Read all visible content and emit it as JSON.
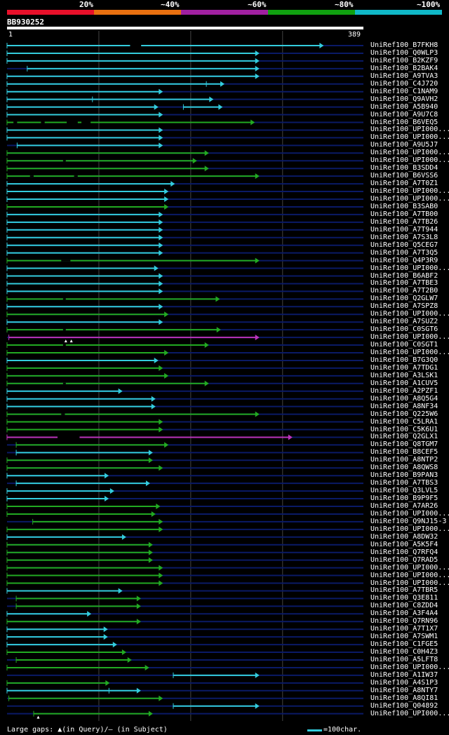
{
  "legend": {
    "labels": [
      "20%",
      "~40%",
      "~60%",
      "~80%",
      "~100%"
    ],
    "colors": [
      "#e8102a",
      "#e87010",
      "#a020a0",
      "#10a010",
      "#10b8c8"
    ]
  },
  "query": {
    "id": "BB930252",
    "start": "1",
    "end": "389",
    "length": 389
  },
  "footer": {
    "gaps_text": "Large gaps: ▲(in Query)/— (in Subject)",
    "scale_text": "=100char."
  },
  "colors": {
    "cyan": "#33ccdd",
    "green": "#22aa22",
    "magenta": "#bb33bb",
    "navy": "#0a1a66",
    "grid": "#444444"
  },
  "hits": [
    {
      "id": "UniRef100_B7FKH8",
      "start": 1,
      "end": 345,
      "color": "cyan",
      "gaps": [
        [
          135,
          147
        ]
      ]
    },
    {
      "id": "UniRef100_Q0WLP3",
      "start": 1,
      "end": 275,
      "color": "cyan"
    },
    {
      "id": "UniRef100_B2KZF9",
      "start": 1,
      "end": 275,
      "color": "cyan"
    },
    {
      "id": "UniRef100_B2BAK4",
      "start": 23,
      "end": 275,
      "color": "cyan"
    },
    {
      "id": "UniRef100_A9TVA3",
      "start": 1,
      "end": 275,
      "color": "cyan"
    },
    {
      "id": "UniRef100_C4J720",
      "start": 1,
      "end": 237,
      "color": "cyan",
      "tip": 218
    },
    {
      "id": "UniRef100_C1NAM9",
      "start": 1,
      "end": 170,
      "color": "cyan"
    },
    {
      "id": "UniRef100_Q9AVH2",
      "start": 1,
      "end": 225,
      "color": "cyan",
      "tip": 94
    },
    {
      "id": "UniRef100_A5B940",
      "start": 1,
      "end": 165,
      "color": "cyan",
      "sub": [
        [
          193,
          235
        ]
      ]
    },
    {
      "id": "UniRef100_A9U7C8",
      "start": 1,
      "end": 170,
      "color": "cyan"
    },
    {
      "id": "UniRef100_B6VEQ5",
      "start": 1,
      "end": 270,
      "color": "green",
      "gaps": [
        [
          8,
          12
        ],
        [
          38,
          42
        ],
        [
          66,
          78
        ],
        [
          82,
          92
        ]
      ]
    },
    {
      "id": "UniRef100_UPI000...",
      "start": 1,
      "end": 170,
      "color": "cyan"
    },
    {
      "id": "UniRef100_UPI000...",
      "start": 1,
      "end": 170,
      "color": "cyan"
    },
    {
      "id": "UniRef100_A9U5J7",
      "start": 12,
      "end": 170,
      "color": "cyan"
    },
    {
      "id": "UniRef100_UPI000...",
      "start": 1,
      "end": 220,
      "color": "green"
    },
    {
      "id": "UniRef100_UPI000...",
      "start": 1,
      "end": 207,
      "color": "green",
      "gaps": [
        [
          62,
          65
        ]
      ]
    },
    {
      "id": "UniRef100_B3SDD4",
      "start": 1,
      "end": 220,
      "color": "green"
    },
    {
      "id": "UniRef100_B6VSS6",
      "start": 1,
      "end": 275,
      "color": "green",
      "gaps": [
        [
          26,
          30
        ],
        [
          74,
          78
        ]
      ]
    },
    {
      "id": "UniRef100_A7T0Z1",
      "start": 1,
      "end": 183,
      "color": "cyan"
    },
    {
      "id": "UniRef100_UPI000...",
      "start": 1,
      "end": 176,
      "color": "cyan"
    },
    {
      "id": "UniRef100_UPI000...",
      "start": 1,
      "end": 176,
      "color": "cyan"
    },
    {
      "id": "UniRef100_B3SAB0",
      "start": 1,
      "end": 176,
      "color": "green"
    },
    {
      "id": "UniRef100_A7TB00",
      "start": 1,
      "end": 170,
      "color": "cyan"
    },
    {
      "id": "UniRef100_A7TB26",
      "start": 1,
      "end": 170,
      "color": "cyan"
    },
    {
      "id": "UniRef100_A7T944",
      "start": 1,
      "end": 170,
      "color": "cyan"
    },
    {
      "id": "UniRef100_A7S3L8",
      "start": 1,
      "end": 170,
      "color": "cyan"
    },
    {
      "id": "UniRef100_Q5CEG7",
      "start": 1,
      "end": 170,
      "color": "cyan"
    },
    {
      "id": "UniRef100_A7T3Q5",
      "start": 1,
      "end": 170,
      "color": "cyan"
    },
    {
      "id": "UniRef100_Q4P3R9",
      "start": 1,
      "end": 275,
      "color": "green",
      "gaps": [
        [
          60,
          70
        ]
      ]
    },
    {
      "id": "UniRef100_UPI000...",
      "start": 1,
      "end": 165,
      "color": "cyan"
    },
    {
      "id": "UniRef100_B6ABF2",
      "start": 1,
      "end": 170,
      "color": "cyan"
    },
    {
      "id": "UniRef100_A7TBE3",
      "start": 1,
      "end": 170,
      "color": "cyan"
    },
    {
      "id": "UniRef100_A7T2B0",
      "start": 1,
      "end": 170,
      "color": "cyan"
    },
    {
      "id": "UniRef100_Q2GLW7",
      "start": 1,
      "end": 232,
      "color": "green",
      "gaps": [
        [
          62,
          65
        ]
      ]
    },
    {
      "id": "UniRef100_A7SPZ8",
      "start": 1,
      "end": 170,
      "color": "cyan"
    },
    {
      "id": "UniRef100_UPI000...",
      "start": 1,
      "end": 176,
      "color": "green"
    },
    {
      "id": "UniRef100_A7SUZ2",
      "start": 1,
      "end": 170,
      "color": "cyan"
    },
    {
      "id": "UniRef100_C0SGT6",
      "start": 1,
      "end": 233,
      "color": "green",
      "gaps": [
        [
          62,
          65
        ]
      ]
    },
    {
      "id": "UniRef100_UPI000...",
      "start": 3,
      "end": 275,
      "color": "magenta",
      "qgaps": [
        65,
        71
      ]
    },
    {
      "id": "UniRef100_C0SGT1",
      "start": 1,
      "end": 220,
      "color": "green",
      "gaps": [
        [
          62,
          65
        ]
      ]
    },
    {
      "id": "UniRef100_UPI000...",
      "start": 1,
      "end": 176,
      "color": "green"
    },
    {
      "id": "UniRef100_B7G3Q0",
      "start": 1,
      "end": 165,
      "color": "cyan"
    },
    {
      "id": "UniRef100_A7TDG1",
      "start": 1,
      "end": 170,
      "color": "green"
    },
    {
      "id": "UniRef100_A3LSK1",
      "start": 1,
      "end": 176,
      "color": "green"
    },
    {
      "id": "UniRef100_A1CUV5",
      "start": 1,
      "end": 220,
      "color": "green",
      "gaps": [
        [
          62,
          65
        ]
      ]
    },
    {
      "id": "UniRef100_A2PZF1",
      "start": 1,
      "end": 126,
      "color": "cyan"
    },
    {
      "id": "UniRef100_A8Q5G4",
      "start": 1,
      "end": 162,
      "color": "cyan"
    },
    {
      "id": "UniRef100_A8NF34",
      "start": 1,
      "end": 162,
      "color": "cyan"
    },
    {
      "id": "UniRef100_Q225W6",
      "start": 1,
      "end": 275,
      "color": "green",
      "gaps": [
        [
          60,
          64
        ]
      ]
    },
    {
      "id": "UniRef100_C5LRA1",
      "start": 1,
      "end": 170,
      "color": "green"
    },
    {
      "id": "UniRef100_C5K6U1",
      "start": 1,
      "end": 170,
      "color": "green"
    },
    {
      "id": "UniRef100_Q2GLX1",
      "start": 1,
      "end": 311,
      "color": "magenta",
      "gaps": [
        [
          56,
          80
        ]
      ]
    },
    {
      "id": "UniRef100_Q8TGM7",
      "start": 11,
      "end": 176,
      "color": "green"
    },
    {
      "id": "UniRef100_B8CEF5",
      "start": 11,
      "end": 159,
      "color": "cyan"
    },
    {
      "id": "UniRef100_A8NTP2",
      "start": 1,
      "end": 159,
      "color": "green"
    },
    {
      "id": "UniRef100_A8QWS8",
      "start": 1,
      "end": 170,
      "color": "green"
    },
    {
      "id": "UniRef100_B9PAN3",
      "start": 1,
      "end": 111,
      "color": "cyan"
    },
    {
      "id": "UniRef100_A7TBS3",
      "start": 11,
      "end": 156,
      "color": "cyan"
    },
    {
      "id": "UniRef100_Q3LVL5",
      "start": 1,
      "end": 117,
      "color": "cyan"
    },
    {
      "id": "UniRef100_B9P9F5",
      "start": 1,
      "end": 111,
      "color": "cyan"
    },
    {
      "id": "UniRef100_A7AR26",
      "start": 1,
      "end": 167,
      "color": "green"
    },
    {
      "id": "UniRef100_UPI000...",
      "start": 1,
      "end": 162,
      "color": "green"
    },
    {
      "id": "UniRef100_Q9NJ15-3",
      "start": 29,
      "end": 170,
      "color": "green"
    },
    {
      "id": "UniRef100_UPI000...",
      "start": 1,
      "end": 170,
      "color": "green"
    },
    {
      "id": "UniRef100_A8DW32",
      "start": 1,
      "end": 130,
      "color": "cyan"
    },
    {
      "id": "UniRef100_A5K5F4",
      "start": 1,
      "end": 159,
      "color": "green"
    },
    {
      "id": "UniRef100_Q7RFQ4",
      "start": 1,
      "end": 159,
      "color": "green"
    },
    {
      "id": "UniRef100_Q7RAD5",
      "start": 1,
      "end": 159,
      "color": "green"
    },
    {
      "id": "UniRef100_UPI000...",
      "start": 1,
      "end": 170,
      "color": "green"
    },
    {
      "id": "UniRef100_UPI000...",
      "start": 1,
      "end": 170,
      "color": "green"
    },
    {
      "id": "UniRef100_UPI000...",
      "start": 1,
      "end": 170,
      "color": "green"
    },
    {
      "id": "UniRef100_A7TBR5",
      "start": 1,
      "end": 126,
      "color": "cyan"
    },
    {
      "id": "UniRef100_Q3E811",
      "start": 11,
      "end": 146,
      "color": "green"
    },
    {
      "id": "UniRef100_C8ZDD4",
      "start": 11,
      "end": 146,
      "color": "green"
    },
    {
      "id": "UniRef100_A3F4A4",
      "start": 1,
      "end": 92,
      "color": "cyan"
    },
    {
      "id": "UniRef100_Q7RN96",
      "start": 1,
      "end": 146,
      "color": "green"
    },
    {
      "id": "UniRef100_A7T1X7",
      "start": 1,
      "end": 110,
      "color": "cyan"
    },
    {
      "id": "UniRef100_A7SWM1",
      "start": 1,
      "end": 110,
      "color": "cyan"
    },
    {
      "id": "UniRef100_C1FGE5",
      "start": 1,
      "end": 120,
      "color": "cyan"
    },
    {
      "id": "UniRef100_C0H4Z3",
      "start": 1,
      "end": 130,
      "color": "green"
    },
    {
      "id": "UniRef100_A5LFT8",
      "start": 11,
      "end": 136,
      "color": "green"
    },
    {
      "id": "UniRef100_UPI000...",
      "start": 1,
      "end": 155,
      "color": "green"
    },
    {
      "id": "UniRef100_A1IW37",
      "start": 182,
      "end": 275,
      "color": "cyan"
    },
    {
      "id": "UniRef100_A4S1P3",
      "start": 1,
      "end": 112,
      "color": "green"
    },
    {
      "id": "UniRef100_A8NTY7",
      "start": 1,
      "end": 146,
      "color": "cyan",
      "tip": 112
    },
    {
      "id": "UniRef100_A8QI81",
      "start": 3,
      "end": 170,
      "color": "green"
    },
    {
      "id": "UniRef100_Q04892",
      "start": 182,
      "end": 275,
      "color": "cyan"
    },
    {
      "id": "UniRef100_UPI000...",
      "start": 30,
      "end": 159,
      "color": "green",
      "qgaps": [
        35
      ]
    }
  ]
}
